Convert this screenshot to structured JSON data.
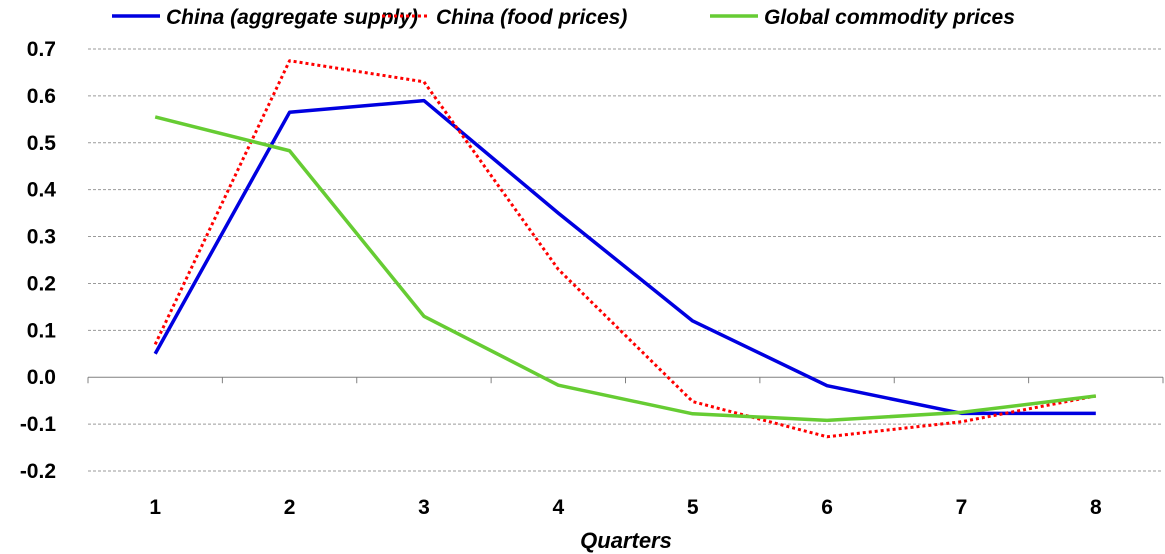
{
  "chart_data": {
    "type": "line",
    "title": "",
    "xlabel": "Quarters",
    "ylabel": "",
    "categories": [
      "1",
      "2",
      "3",
      "4",
      "5",
      "6",
      "7",
      "8"
    ],
    "ylim": [
      -0.2,
      0.7
    ],
    "yticks": [
      "0.7",
      "0.6",
      "0.5",
      "0.4",
      "0.3",
      "0.2",
      "0.1",
      "0.0",
      "-0.1",
      "-0.2"
    ],
    "ytick_values": [
      0.7,
      0.6,
      0.5,
      0.4,
      0.3,
      0.2,
      0.1,
      0.0,
      -0.1,
      -0.2
    ],
    "grid": true,
    "legend_position": "top",
    "series": [
      {
        "name": "China (aggregate supply)",
        "color": "#0000e0",
        "style": "solid",
        "values": [
          0.05,
          0.565,
          0.59,
          0.35,
          0.12,
          -0.018,
          -0.077,
          -0.077
        ]
      },
      {
        "name": "China (food prices)",
        "color": "#ff0000",
        "style": "dotted",
        "values": [
          0.07,
          0.675,
          0.63,
          0.23,
          -0.052,
          -0.127,
          -0.095,
          -0.04
        ]
      },
      {
        "name": "Global commodity prices",
        "color": "#66cc33",
        "style": "solid",
        "values": [
          0.555,
          0.483,
          0.13,
          -0.017,
          -0.078,
          -0.092,
          -0.075,
          -0.04
        ]
      }
    ]
  }
}
